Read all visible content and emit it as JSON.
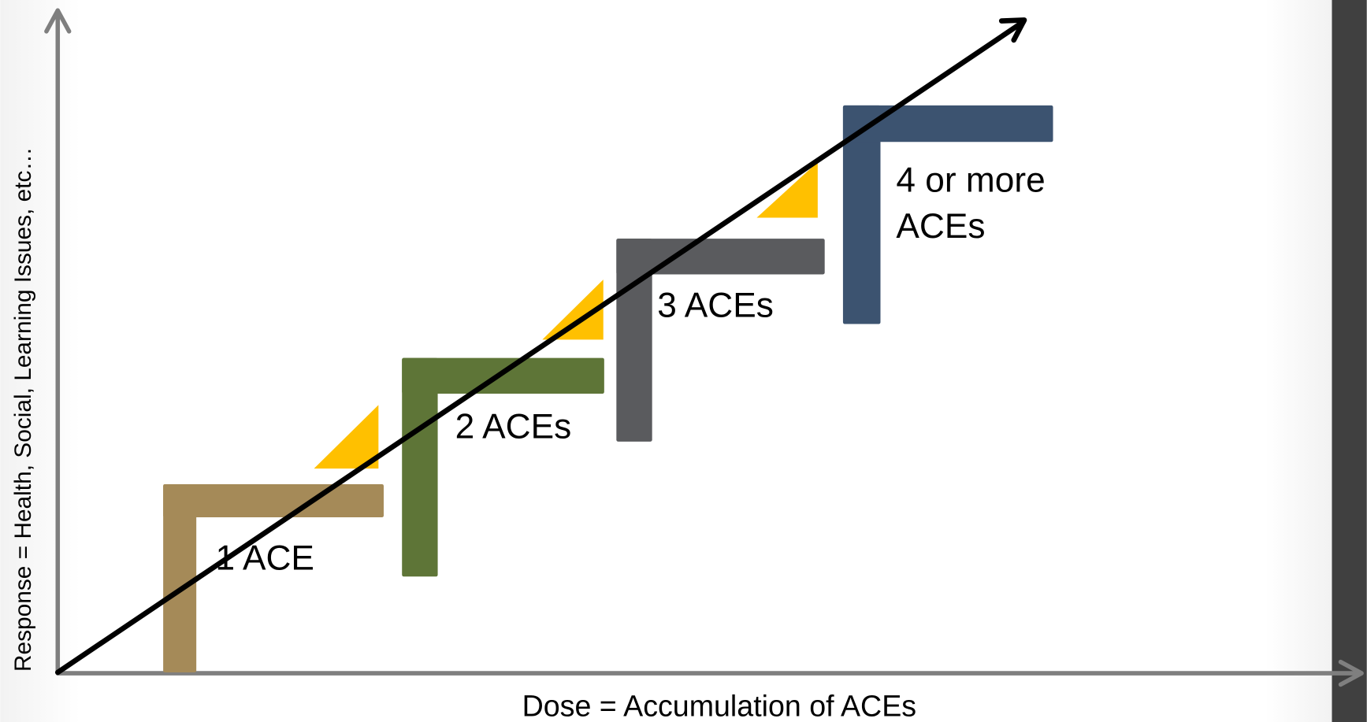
{
  "x_axis_label": "Dose = Accumulation of ACEs",
  "y_axis_label": "Response = Health, Social, Learning Issues, etc…",
  "steps": [
    {
      "lines": [
        "1 ACE"
      ]
    },
    {
      "lines": [
        "2 ACEs"
      ]
    },
    {
      "lines": [
        "3 ACEs"
      ]
    },
    {
      "lines": [
        "4 or more",
        "ACEs"
      ]
    }
  ]
}
